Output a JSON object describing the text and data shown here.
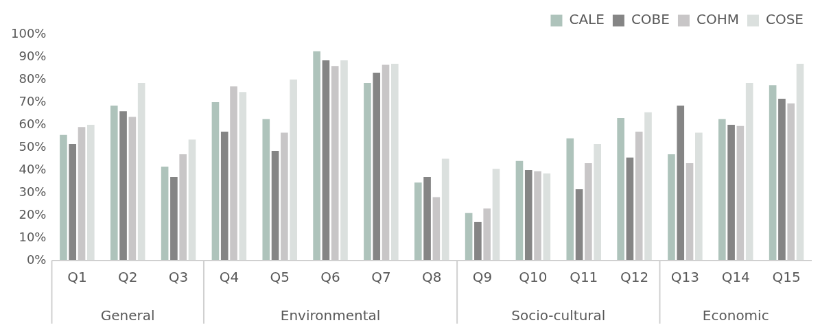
{
  "chart_data": {
    "type": "bar",
    "categories": [
      "Q1",
      "Q2",
      "Q3",
      "Q4",
      "Q5",
      "Q6",
      "Q7",
      "Q8",
      "Q9",
      "Q10",
      "Q11",
      "Q12",
      "Q13",
      "Q14",
      "Q15"
    ],
    "series": [
      {
        "name": "CALE",
        "color": "#aec3bb",
        "values": [
          55.5,
          68.5,
          41.5,
          70,
          62.5,
          92.5,
          78.5,
          34.5,
          21,
          44,
          54,
          63,
          47,
          62.5,
          77.5
        ]
      },
      {
        "name": "COBE",
        "color": "#858585",
        "values": [
          51.5,
          66,
          37,
          57,
          48.5,
          88.5,
          83,
          37,
          17,
          40,
          31.5,
          45.5,
          68.5,
          60,
          71.5
        ]
      },
      {
        "name": "COHM",
        "color": "#c8c6c7",
        "values": [
          59,
          63.5,
          47,
          77,
          56.5,
          86,
          86.5,
          28,
          23,
          39.5,
          43,
          57,
          43,
          59.5,
          69.5
        ]
      },
      {
        "name": "COSE",
        "color": "#dbe0de",
        "values": [
          60,
          78.5,
          53.5,
          74.5,
          80,
          88.5,
          87,
          45,
          40.5,
          38.5,
          51.5,
          65.5,
          56.5,
          78.5,
          87
        ]
      }
    ],
    "ylim": [
      0,
      100
    ],
    "yticks": [
      {
        "value": 0,
        "label": "0%"
      },
      {
        "value": 10,
        "label": "10%"
      },
      {
        "value": 20,
        "label": "20%"
      },
      {
        "value": 30,
        "label": "30%"
      },
      {
        "value": 40,
        "label": "40%"
      },
      {
        "value": 50,
        "label": "50%"
      },
      {
        "value": 60,
        "label": "60%"
      },
      {
        "value": 70,
        "label": "70%"
      },
      {
        "value": 80,
        "label": "80%"
      },
      {
        "value": 90,
        "label": "90%"
      },
      {
        "value": 100,
        "label": "100%"
      }
    ],
    "annotations": [
      "General",
      "Environmental",
      "Socio-cultural",
      "Economic"
    ],
    "grid": false,
    "legend": "top right"
  }
}
